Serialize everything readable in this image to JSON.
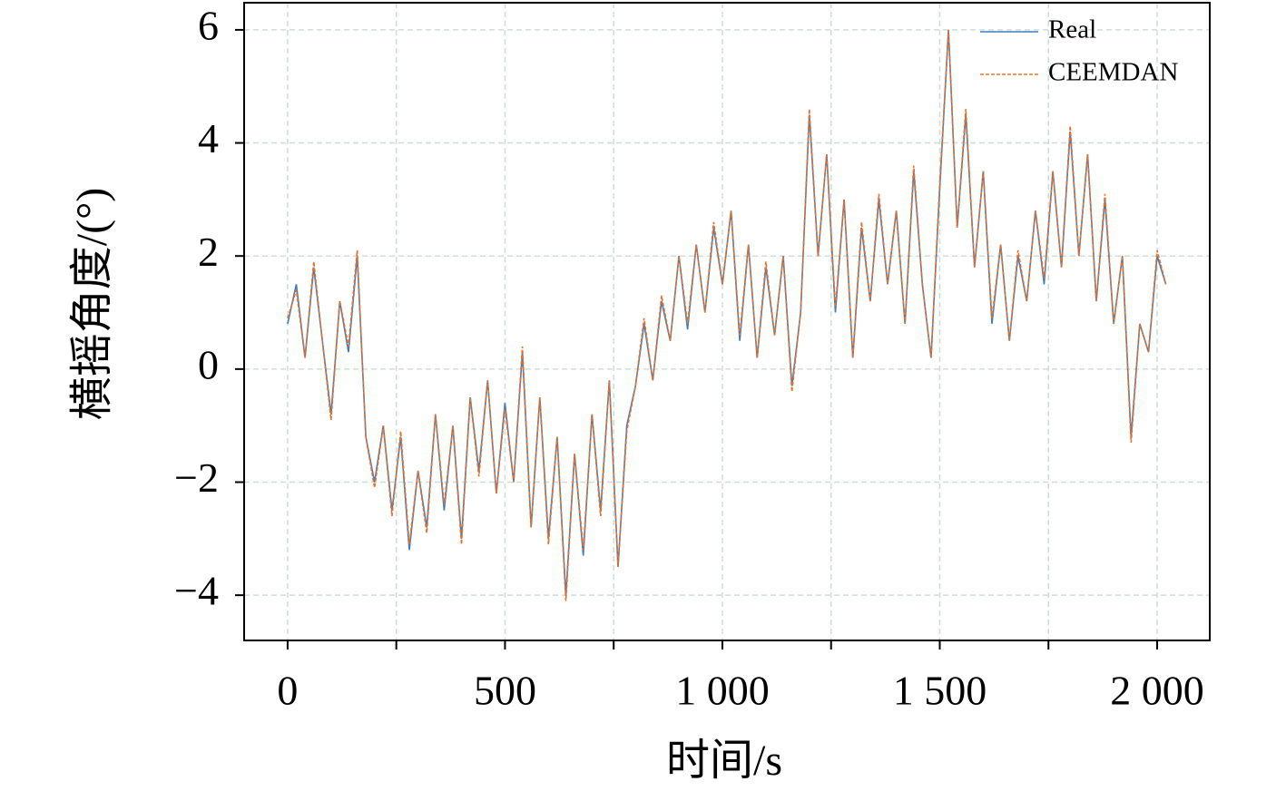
{
  "chart_data": {
    "type": "line",
    "xlabel": "时间/s",
    "ylabel": "横摇角度/(°)",
    "x": [
      0,
      20,
      40,
      60,
      80,
      100,
      120,
      140,
      160,
      180,
      200,
      220,
      240,
      260,
      280,
      300,
      320,
      340,
      360,
      380,
      400,
      420,
      440,
      460,
      480,
      500,
      520,
      540,
      560,
      580,
      600,
      620,
      640,
      660,
      680,
      700,
      720,
      740,
      760,
      780,
      800,
      820,
      840,
      860,
      880,
      900,
      920,
      940,
      960,
      980,
      1000,
      1020,
      1040,
      1060,
      1080,
      1100,
      1120,
      1140,
      1160,
      1180,
      1200,
      1220,
      1240,
      1260,
      1280,
      1300,
      1320,
      1340,
      1360,
      1380,
      1400,
      1420,
      1440,
      1460,
      1480,
      1500,
      1520,
      1540,
      1560,
      1580,
      1600,
      1620,
      1640,
      1660,
      1680,
      1700,
      1720,
      1740,
      1760,
      1780,
      1800,
      1820,
      1840,
      1860,
      1880,
      1900,
      1920,
      1940,
      1960,
      1980,
      2000,
      2020
    ],
    "series": [
      {
        "name": "Real",
        "color": "#3b7dbf",
        "dashed": false,
        "values": [
          0.8,
          1.5,
          0.2,
          1.8,
          0.5,
          -0.8,
          1.2,
          0.3,
          2.0,
          -1.2,
          -2.0,
          -1.0,
          -2.5,
          -1.2,
          -3.2,
          -1.8,
          -2.8,
          -0.8,
          -2.5,
          -1.0,
          -3.0,
          -0.5,
          -1.8,
          -0.2,
          -2.2,
          -0.6,
          -2.0,
          0.3,
          -2.8,
          -0.5,
          -3.0,
          -1.2,
          -4.0,
          -1.5,
          -3.3,
          -0.8,
          -2.5,
          -0.2,
          -3.5,
          -1.0,
          -0.3,
          0.8,
          -0.2,
          1.2,
          0.5,
          2.0,
          0.7,
          2.2,
          1.0,
          2.5,
          1.5,
          2.8,
          0.5,
          2.2,
          0.2,
          1.8,
          0.6,
          2.0,
          -0.3,
          1.0,
          4.5,
          2.0,
          3.8,
          1.0,
          3.0,
          0.2,
          2.5,
          1.2,
          3.0,
          1.5,
          2.8,
          0.8,
          3.5,
          1.5,
          0.2,
          3.2,
          6.0,
          2.5,
          4.5,
          1.8,
          3.5,
          0.8,
          2.2,
          0.5,
          2.0,
          1.2,
          2.8,
          1.5,
          3.5,
          1.8,
          4.2,
          2.0,
          3.8,
          1.2,
          3.0,
          0.8,
          2.0,
          -1.2,
          0.8,
          0.3,
          2.0,
          1.5
        ]
      },
      {
        "name": "CEEMDAN",
        "color": "#e8702a",
        "dashed": true,
        "values": [
          0.9,
          1.4,
          0.2,
          1.9,
          0.5,
          -0.9,
          1.2,
          0.4,
          2.1,
          -1.2,
          -2.1,
          -1.0,
          -2.6,
          -1.1,
          -3.1,
          -1.8,
          -2.9,
          -0.8,
          -2.4,
          -1.0,
          -3.1,
          -0.5,
          -1.9,
          -0.2,
          -2.2,
          -0.7,
          -2.0,
          0.4,
          -2.8,
          -0.5,
          -3.1,
          -1.2,
          -4.1,
          -1.5,
          -3.2,
          -0.8,
          -2.6,
          -0.2,
          -3.5,
          -1.1,
          -0.3,
          0.9,
          -0.2,
          1.3,
          0.5,
          2.0,
          0.8,
          2.2,
          1.0,
          2.6,
          1.5,
          2.8,
          0.6,
          2.2,
          0.2,
          1.9,
          0.6,
          2.0,
          -0.4,
          1.0,
          4.6,
          2.0,
          3.8,
          1.1,
          3.0,
          0.2,
          2.6,
          1.2,
          3.1,
          1.5,
          2.8,
          0.8,
          3.6,
          1.5,
          0.2,
          3.3,
          6.0,
          2.5,
          4.6,
          1.8,
          3.5,
          0.9,
          2.2,
          0.5,
          2.1,
          1.2,
          2.8,
          1.6,
          3.5,
          1.8,
          4.3,
          2.0,
          3.8,
          1.2,
          3.1,
          0.8,
          2.0,
          -1.3,
          0.8,
          0.3,
          2.1,
          1.5
        ]
      }
    ],
    "xlim": [
      -100,
      2121
    ],
    "xticks": [
      0,
      500,
      {
        "value": 1000,
        "label": "1 000"
      },
      {
        "value": 1500,
        "label": "1 500"
      },
      {
        "value": 2000,
        "label": "2 000"
      }
    ],
    "xminorticks": [
      250,
      750,
      1250,
      1750
    ],
    "ylim": [
      -4.8,
      6.48
    ],
    "yticks": [
      {
        "value": -4,
        "label": "−4"
      },
      {
        "value": -2,
        "label": "−2"
      },
      0,
      2,
      4,
      6
    ],
    "grid": true,
    "legend": "upper right"
  }
}
